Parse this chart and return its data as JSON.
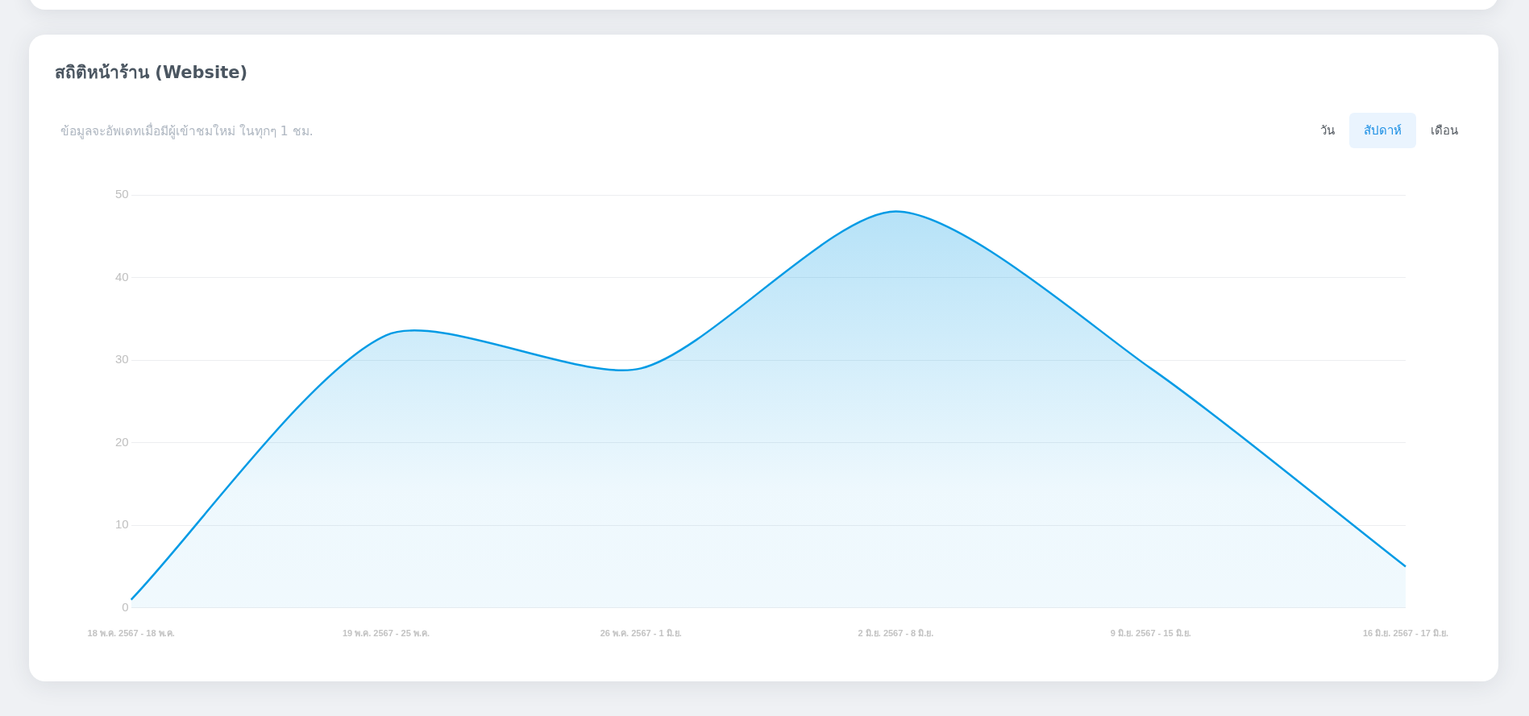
{
  "chart_data": {
    "type": "area",
    "title": "สถิติหน้าร้าน (Website)",
    "subtitle": "ข้อมูลจะอัพเดทเมื่อมีผู้เข้าชมใหม่ ในทุกๆ 1 ชม.",
    "categories": [
      "18 พ.ค. 2567 - 18 พ.ค.",
      "19 พ.ค. 2567 - 25 พ.ค.",
      "26 พ.ค. 2567 - 1 มิ.ย.",
      "2 มิ.ย. 2567 - 8 มิ.ย.",
      "9 มิ.ย. 2567 - 15 มิ.ย.",
      "16 มิ.ย. 2567 - 17 มิ.ย."
    ],
    "series": [
      {
        "color": "#039be5",
        "values": [
          1,
          33,
          29,
          48,
          29,
          5
        ]
      }
    ],
    "ylim": [
      0,
      50
    ],
    "yticks": [
      0,
      10,
      20,
      30,
      40,
      50
    ],
    "grid": "y",
    "annotations": [
      "วัน",
      "สัปดาห์",
      "เดือน"
    ]
  }
}
